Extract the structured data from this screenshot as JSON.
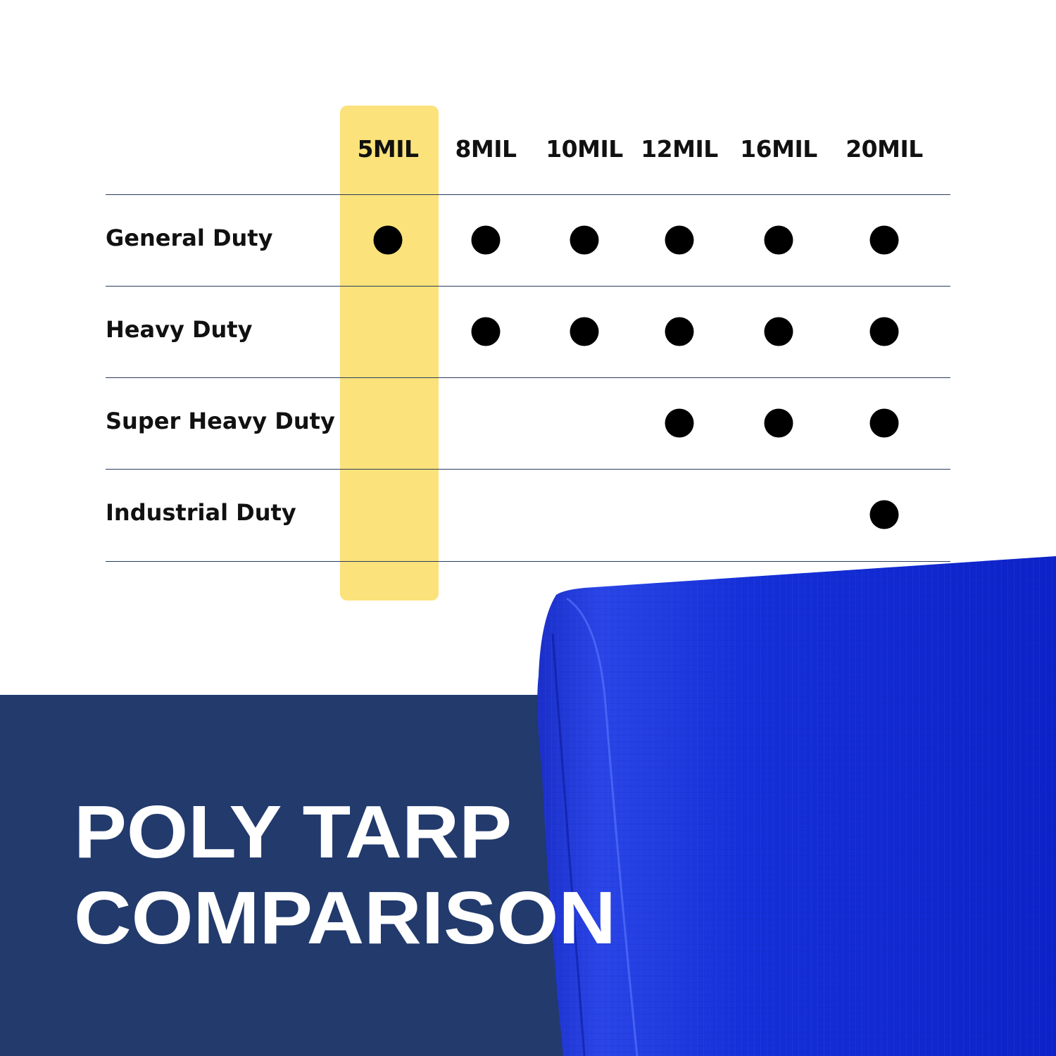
{
  "columns": [
    "5MIL",
    "8MIL",
    "10MIL",
    "12MIL",
    "16MIL",
    "20MIL"
  ],
  "highlighted_column": "5MIL",
  "rows": [
    {
      "label": "General Duty",
      "available": [
        true,
        true,
        true,
        true,
        true,
        true
      ]
    },
    {
      "label": "Heavy Duty",
      "available": [
        false,
        true,
        true,
        true,
        true,
        true
      ]
    },
    {
      "label": "Super Heavy Duty",
      "available": [
        false,
        false,
        false,
        true,
        true,
        true
      ]
    },
    {
      "label": "Industrial Duty",
      "available": [
        false,
        false,
        false,
        false,
        false,
        true
      ]
    }
  ],
  "title": {
    "line1": "POLY TARP",
    "line2": "COMPARISON"
  },
  "colors": {
    "highlight": "#fbe27a",
    "band": "#223a6c",
    "tarp": "#1a2fd6",
    "dot": "#000000"
  }
}
